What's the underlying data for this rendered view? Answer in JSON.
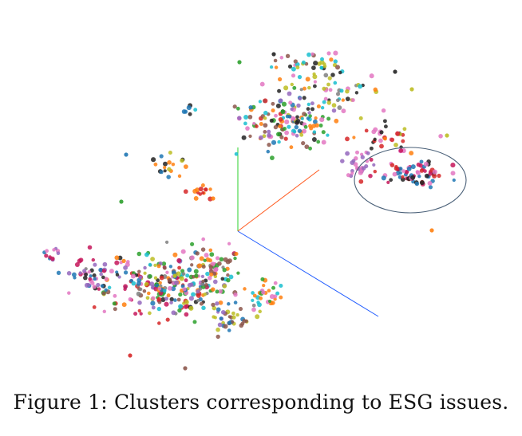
{
  "caption": "Figure 1: Clusters corresponding to ESG issues.",
  "palette": {
    "red": "#d62728",
    "orange": "#ff7f0e",
    "green": "#2ca02c",
    "blue": "#1f77b4",
    "cyan": "#17becf",
    "pink": "#e377c2",
    "purple": "#9467bd",
    "brown": "#8c564b",
    "olive": "#bcbd22",
    "dark": "#222222",
    "gray": "#7f7f7f",
    "crimson": "#c5165a"
  },
  "axis_colors": {
    "x_axis": "#1f5bff",
    "y_axis": "#2bd02b",
    "z_axis": "#ff5a1f"
  },
  "highlight_ellipse_color": "#4a6078"
}
